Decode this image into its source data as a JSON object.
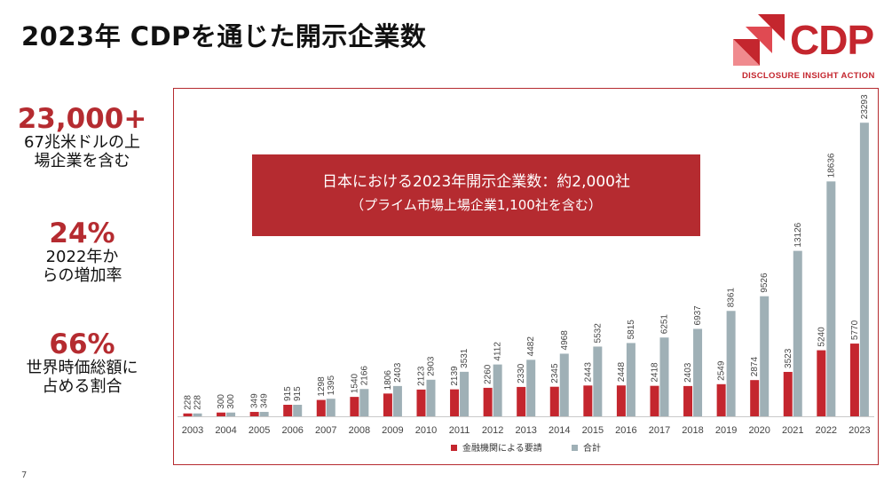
{
  "title": "2023年 CDPを通じた開示企業数",
  "logo": {
    "word": "CDP",
    "tagline": "DISCLOSURE INSIGHT ACTION"
  },
  "stats": [
    {
      "value": "23,000+",
      "caption": "67兆米ドルの上\n場企業を含む"
    },
    {
      "value": "24%",
      "caption": "2022年か\nらの増加率"
    },
    {
      "value": "66%",
      "caption": "世界時価総額に\n占める割合"
    }
  ],
  "banner": {
    "line1": "日本における2023年開示企業数：約2,000社",
    "line2": "（プライム市場上場企業1,100社を含む）"
  },
  "page_number": "7",
  "colors": {
    "financial": "#c4262e",
    "total": "#9fb0b6",
    "accent": "#b52b30"
  },
  "chart_data": {
    "type": "bar",
    "categories": [
      "2003",
      "2004",
      "2005",
      "2006",
      "2007",
      "2008",
      "2009",
      "2010",
      "2011",
      "2012",
      "2013",
      "2014",
      "2015",
      "2016",
      "2017",
      "2018",
      "2019",
      "2020",
      "2021",
      "2022",
      "2023"
    ],
    "series": [
      {
        "name": "金融機関による要請",
        "values": [
          228,
          300,
          349,
          915,
          1298,
          1540,
          1806,
          2123,
          2139,
          2260,
          2330,
          2345,
          2443,
          2448,
          2418,
          2403,
          2549,
          2874,
          3523,
          5240,
          5770
        ]
      },
      {
        "name": "合計",
        "values": [
          228,
          300,
          349,
          915,
          1395,
          2166,
          2403,
          2903,
          3531,
          4112,
          4482,
          4968,
          5532,
          5815,
          6251,
          6937,
          8361,
          9526,
          13126,
          18636,
          23293
        ]
      }
    ],
    "ylim": [
      0,
      25000
    ],
    "legend": "bottom-center",
    "grid": false
  }
}
